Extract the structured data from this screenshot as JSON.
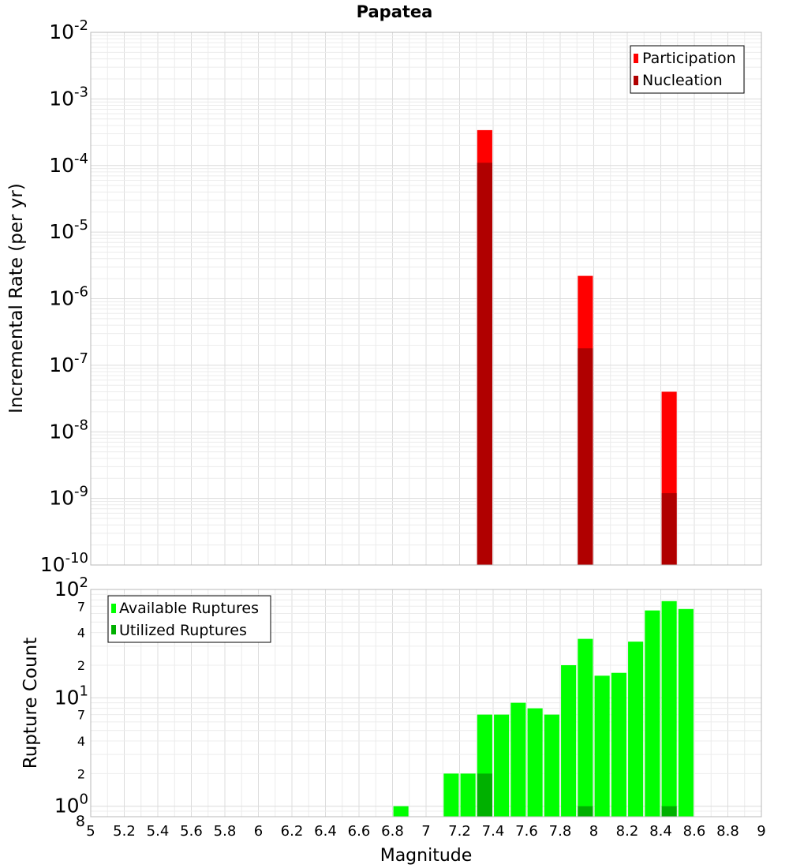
{
  "chart_data": [
    {
      "type": "bar",
      "title": "Papatea",
      "xlabel": "Magnitude",
      "ylabel": "Incremental Rate (per yr)",
      "yscale": "log",
      "ylim": [
        1e-10,
        0.01
      ],
      "xlim": [
        5,
        9
      ],
      "grid": true,
      "legend_position": "top-right",
      "bar_width": 0.09,
      "series": [
        {
          "name": "Participation",
          "color": "#ff0000",
          "points": [
            {
              "x": 7.35,
              "y": 0.00034
            },
            {
              "x": 7.95,
              "y": 2.2e-06
            },
            {
              "x": 8.45,
              "y": 4e-08
            }
          ]
        },
        {
          "name": "Nucleation",
          "color": "#b00000",
          "points": [
            {
              "x": 7.35,
              "y": 0.00011
            },
            {
              "x": 7.95,
              "y": 1.8e-07
            },
            {
              "x": 8.45,
              "y": 1.2e-09
            }
          ]
        }
      ],
      "y_ticks": [
        {
          "value": 0.01,
          "base": "10",
          "exp": "-2"
        },
        {
          "value": 0.001,
          "base": "10",
          "exp": "-3"
        },
        {
          "value": 0.0001,
          "base": "10",
          "exp": "-4"
        },
        {
          "value": 1e-05,
          "base": "10",
          "exp": "-5"
        },
        {
          "value": 1e-06,
          "base": "10",
          "exp": "-6"
        },
        {
          "value": 1e-07,
          "base": "10",
          "exp": "-7"
        },
        {
          "value": 1e-08,
          "base": "10",
          "exp": "-8"
        },
        {
          "value": 1e-09,
          "base": "10",
          "exp": "-9"
        },
        {
          "value": 1e-10,
          "base": "10",
          "exp": "-10"
        }
      ]
    },
    {
      "type": "bar",
      "title": "",
      "xlabel": "Magnitude",
      "ylabel": "Rupture Count",
      "yscale": "log",
      "ylim": [
        0.8,
        100
      ],
      "xlim": [
        5,
        9
      ],
      "grid": true,
      "legend_position": "top-left",
      "bar_width": 0.09,
      "series": [
        {
          "name": "Available Ruptures",
          "color": "#00ff00",
          "points": [
            {
              "x": 6.85,
              "y": 1
            },
            {
              "x": 7.15,
              "y": 2
            },
            {
              "x": 7.25,
              "y": 2
            },
            {
              "x": 7.35,
              "y": 7
            },
            {
              "x": 7.45,
              "y": 7
            },
            {
              "x": 7.55,
              "y": 9
            },
            {
              "x": 7.65,
              "y": 8
            },
            {
              "x": 7.75,
              "y": 7
            },
            {
              "x": 7.85,
              "y": 20
            },
            {
              "x": 7.95,
              "y": 35
            },
            {
              "x": 8.05,
              "y": 16
            },
            {
              "x": 8.15,
              "y": 17
            },
            {
              "x": 8.25,
              "y": 33
            },
            {
              "x": 8.35,
              "y": 64
            },
            {
              "x": 8.45,
              "y": 78
            },
            {
              "x": 8.55,
              "y": 66
            }
          ]
        },
        {
          "name": "Utilized Ruptures",
          "color": "#00b000",
          "points": [
            {
              "x": 7.35,
              "y": 2
            },
            {
              "x": 7.95,
              "y": 1
            },
            {
              "x": 8.45,
              "y": 1
            }
          ]
        }
      ],
      "y_major_ticks": [
        {
          "value": 100,
          "base": "10",
          "exp": "2"
        },
        {
          "value": 10,
          "base": "10",
          "exp": "1"
        },
        {
          "value": 1,
          "base": "10",
          "exp": "0"
        }
      ],
      "y_minor_tick_labels": [
        {
          "value": 70,
          "label": "7"
        },
        {
          "value": 40,
          "label": "4"
        },
        {
          "value": 20,
          "label": "2"
        },
        {
          "value": 7,
          "label": "7"
        },
        {
          "value": 4,
          "label": "4"
        },
        {
          "value": 2,
          "label": "2"
        },
        {
          "value": 0.8,
          "label": "8"
        }
      ]
    }
  ],
  "x_tick_labels": [
    "5",
    "5.2",
    "5.4",
    "5.6",
    "5.8",
    "6",
    "6.2",
    "6.4",
    "6.6",
    "6.8",
    "7",
    "7.2",
    "7.4",
    "7.6",
    "7.8",
    "8",
    "8.2",
    "8.4",
    "8.6",
    "8.8",
    "9"
  ]
}
